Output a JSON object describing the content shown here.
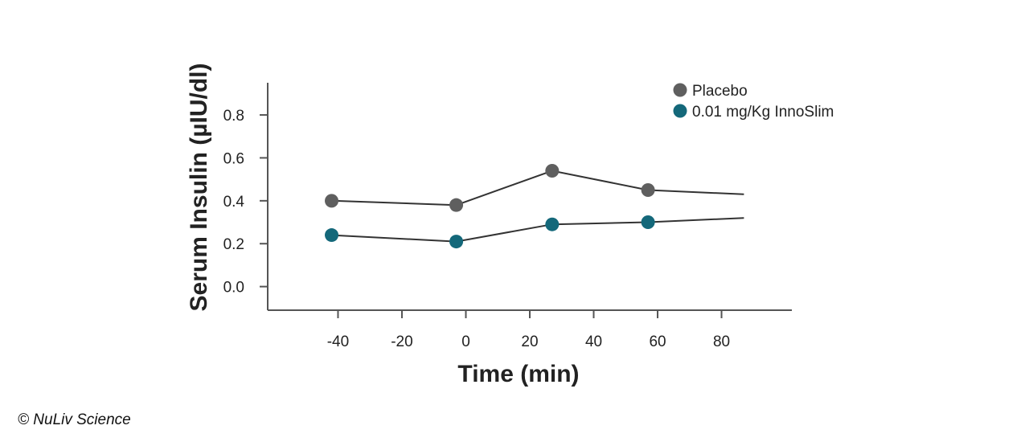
{
  "chart_data": {
    "type": "line",
    "xlabel": "Time (min)",
    "ylabel": "Serum Insulin (µIU/dl)",
    "xlim": [
      -62,
      102
    ],
    "ylim": [
      -0.11,
      0.95
    ],
    "xticks": [
      -40,
      -20,
      0,
      20,
      40,
      60,
      80
    ],
    "xtick_labels": [
      "-40",
      "-20",
      "0",
      "20",
      "40",
      "60",
      "80"
    ],
    "yticks": [
      0.0,
      0.2,
      0.4,
      0.6,
      0.8
    ],
    "ytick_labels": [
      "0.0",
      "0.2",
      "0.4",
      "0.6",
      "0.8"
    ],
    "legend_position": "top-right",
    "series": [
      {
        "name": "Placebo",
        "color": "#5f5f5f",
        "points": [
          {
            "x": -42,
            "y": 0.4
          },
          {
            "x": -3,
            "y": 0.38
          },
          {
            "x": 27,
            "y": 0.54
          },
          {
            "x": 57,
            "y": 0.45
          }
        ],
        "line_end": {
          "x": 87,
          "y": 0.43
        }
      },
      {
        "name": "0.01 mg/Kg InnoSlim",
        "color": "#14687a",
        "points": [
          {
            "x": -42,
            "y": 0.24
          },
          {
            "x": -3,
            "y": 0.21
          },
          {
            "x": 27,
            "y": 0.29
          },
          {
            "x": 57,
            "y": 0.3
          }
        ],
        "line_end": {
          "x": 87,
          "y": 0.32
        }
      }
    ]
  },
  "footer": {
    "copyright": "© NuLiv Science"
  }
}
